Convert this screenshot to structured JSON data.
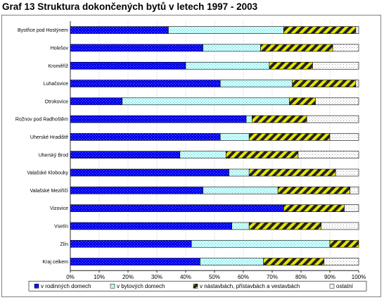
{
  "title": "Graf 13  Struktura dokončených bytů v letech 1997 - 2003",
  "colors": {
    "rodinne": "#0000ee",
    "bytove": "#ccffff",
    "nastavby": "#e6e600",
    "ostatni": "#ffffff",
    "stroke": "#000000",
    "grid": "#a0a0a0"
  },
  "chart_data": {
    "type": "bar",
    "orientation": "horizontal",
    "stacked": "percent",
    "title": "",
    "xlabel": "",
    "ylabel": "",
    "xlim": [
      0,
      100
    ],
    "x_ticks": [
      "0%",
      "10%",
      "20%",
      "30%",
      "40%",
      "50%",
      "60%",
      "70%",
      "80%",
      "90%",
      "100%"
    ],
    "grid": true,
    "legend_position": "bottom",
    "categories": [
      "Bystřice pod Hostýnem",
      "Holešov",
      "Kroměříž",
      "Luhačovice",
      "Otrokovice",
      "Rožnov pod Radhoštěm",
      "Uherské Hradiště",
      "Uherský Brod",
      "Valašské Klobouky",
      "Valašské Meziříčí",
      "Vizovice",
      "Vsetín",
      "Zlín",
      "Kraj celkem"
    ],
    "series": [
      {
        "name": "v rodinných domech",
        "key": "rodinne",
        "values": [
          34,
          46,
          40,
          52,
          18,
          61,
          52,
          38,
          55,
          46,
          74,
          56,
          42,
          45
        ]
      },
      {
        "name": "v bytových domech",
        "key": "bytove",
        "values": [
          40,
          20,
          29,
          25,
          58,
          2,
          10,
          16,
          7,
          26,
          0,
          6,
          48,
          22
        ]
      },
      {
        "name": "v nástavbách, přístavbách a vestavbách",
        "key": "nastavby",
        "values": [
          25,
          25,
          15,
          22,
          9,
          19,
          28,
          25,
          30,
          25,
          21,
          25,
          10,
          21
        ]
      },
      {
        "name": "ostatní",
        "key": "ostatni",
        "values": [
          1,
          9,
          16,
          1,
          15,
          18,
          10,
          21,
          8,
          3,
          5,
          13,
          0,
          12
        ]
      }
    ]
  }
}
